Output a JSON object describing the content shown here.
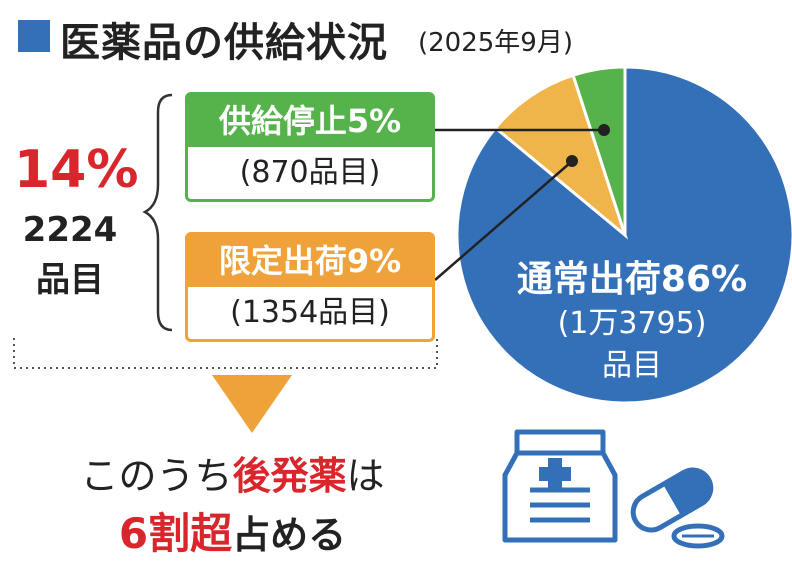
{
  "title": "医薬品の供給状況",
  "title_date": "(2025年9月)",
  "summary": {
    "percent": "14%",
    "count": "2224",
    "unit": "品目"
  },
  "boxes": {
    "stop": {
      "label": "供給停止5%",
      "count": "(870品目)"
    },
    "limit": {
      "label": "限定出荷9%",
      "count": "(1354品目)"
    }
  },
  "pie_label": {
    "main": "通常出荷86%",
    "count": "(1万3795)",
    "unit": "品目"
  },
  "note": {
    "line1_pre": "このうち",
    "line1_em": "後発薬",
    "line1_post": "は",
    "line2_em": "6割超",
    "line2_post": "占める"
  },
  "colors": {
    "normal": "#3470b8",
    "limited": "#efb54a",
    "stopped": "#56b24a",
    "accent": "#d8262c"
  },
  "chart_data": {
    "type": "pie",
    "categories": [
      "通常出荷",
      "限定出荷",
      "供給停止"
    ],
    "values": [
      86,
      9,
      5
    ],
    "counts": [
      13795,
      1354,
      870
    ],
    "title": "医薬品の供給状況"
  }
}
